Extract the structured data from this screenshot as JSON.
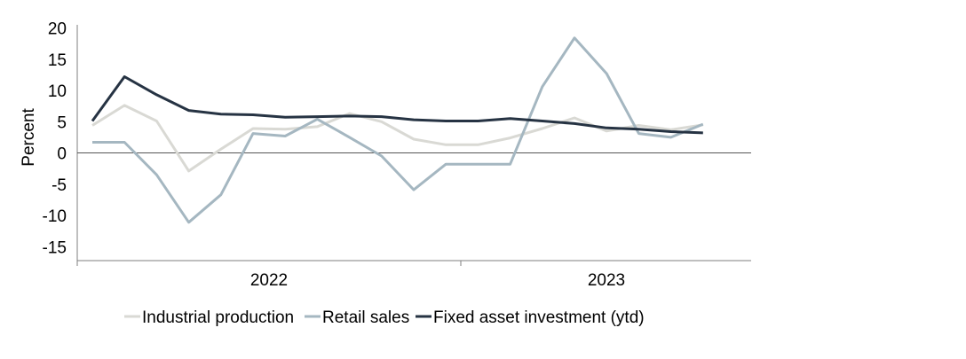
{
  "chart_data": {
    "type": "line",
    "title": "",
    "xlabel": "",
    "ylabel": "Percent",
    "ylim": [
      -17,
      20
    ],
    "yticks": [
      20,
      15,
      10,
      5,
      0,
      -5,
      -10,
      -15
    ],
    "ytick_labels": [
      "20",
      "15",
      "10",
      "5",
      "0",
      "-5",
      "-10",
      "-15"
    ],
    "x": [
      "2021-10",
      "2021-11",
      "2021-12",
      "2022-01",
      "2022-02",
      "2022-03",
      "2022-04",
      "2022-05",
      "2022-06",
      "2022-07",
      "2022-08",
      "2022-09",
      "2022-10",
      "2022-11",
      "2022-12",
      "2023-01",
      "2023-02",
      "2023-03",
      "2023-04",
      "2023-05",
      "2023-06",
      "2023-07"
    ],
    "x_tick_labels": [
      "2022",
      "2023"
    ],
    "grid": false,
    "legend_position": "bottom",
    "series": [
      {
        "name": "Industrial production",
        "color": "#d9d9d4",
        "values": [
          4.4,
          7.6,
          5.1,
          -2.9,
          0.6,
          3.9,
          3.8,
          4.2,
          6.3,
          5.0,
          2.2,
          1.3,
          1.3,
          2.4,
          3.9,
          5.6,
          3.5,
          4.4,
          3.7,
          4.5,
          null,
          null
        ]
      },
      {
        "name": "Retail sales",
        "color": "#a5b7c1",
        "values": [
          1.7,
          1.7,
          -3.5,
          -11.1,
          -6.7,
          3.1,
          2.7,
          5.4,
          2.5,
          -0.5,
          -5.9,
          -1.8,
          -1.8,
          -1.8,
          10.6,
          18.4,
          12.7,
          3.1,
          2.5,
          4.6,
          null,
          null
        ]
      },
      {
        "name": "Fixed asset investment (ytd)",
        "color": "#263343",
        "values": [
          5.1,
          12.2,
          9.3,
          6.8,
          6.2,
          6.1,
          5.7,
          5.8,
          5.9,
          5.8,
          5.3,
          5.1,
          5.1,
          5.5,
          5.1,
          4.7,
          4.0,
          3.8,
          3.4,
          3.2,
          null,
          null
        ]
      }
    ]
  }
}
